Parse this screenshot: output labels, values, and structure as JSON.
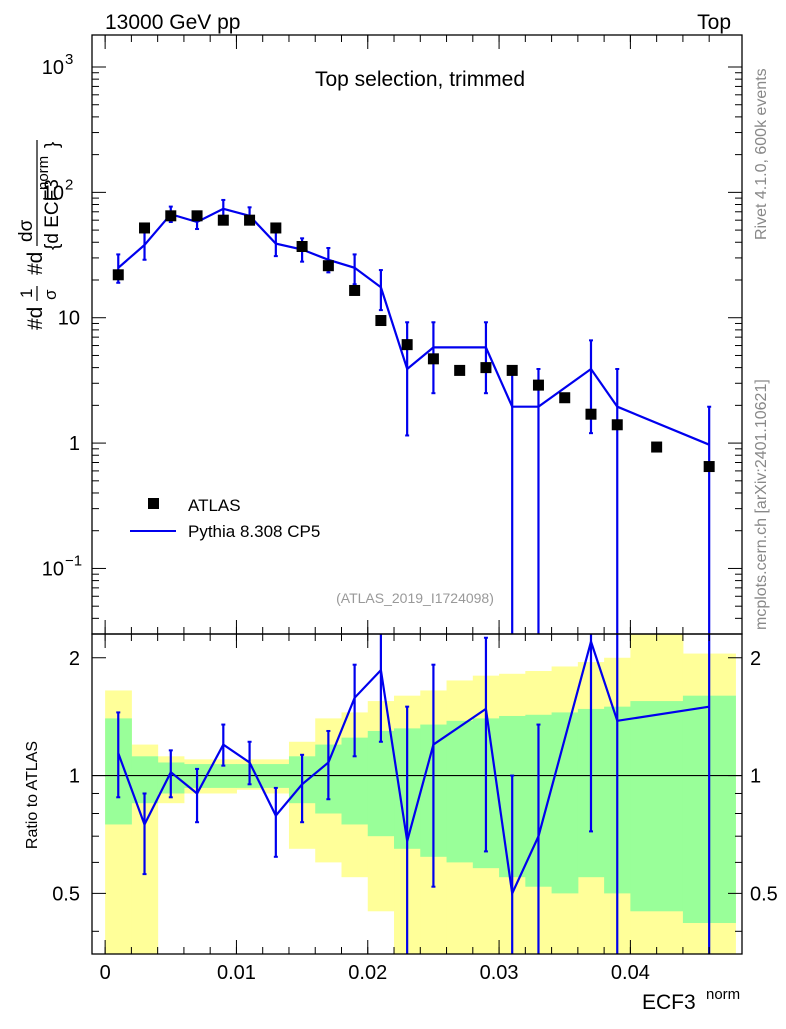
{
  "header": {
    "left": "13000 GeV pp",
    "right": "Top"
  },
  "side_labels": {
    "rivet": "Rivet 4.1.0,  600k events",
    "mcplots": "mcplots.cern.ch [arXiv:2401.10621]"
  },
  "legend": {
    "data_label": "ATLAS",
    "mc_label": "Pythia 8.308 CP5"
  },
  "analysis_id": "(ATLAS_2019_I1724098)",
  "colors": {
    "mc": "#0000ee",
    "data": "#000000",
    "band_inner": "#99ff99",
    "band_outer": "#ffff99"
  },
  "chart_data": [
    {
      "type": "scatter",
      "title": "Top selection, trimmed",
      "ylabel": "#d1/σ #dσ/#d{d ECF3^norm}",
      "yscale": "log",
      "xlim": [
        -0.001,
        0.0485
      ],
      "ylim": [
        0.03,
        1800
      ],
      "y_tick_labels": [
        {
          "value": 0.1,
          "base": "10",
          "exp": "−1"
        },
        {
          "value": 1,
          "base": "1",
          "exp": ""
        },
        {
          "value": 10,
          "base": "10",
          "exp": ""
        },
        {
          "value": 100,
          "base": "10",
          "exp": "2"
        },
        {
          "value": 1000,
          "base": "10",
          "exp": "3"
        }
      ],
      "series": [
        {
          "name": "ATLAS",
          "kind": "points",
          "x": [
            0.001,
            0.003,
            0.005,
            0.007,
            0.009,
            0.011,
            0.013,
            0.015,
            0.017,
            0.019,
            0.021,
            0.023,
            0.025,
            0.027,
            0.029,
            0.031,
            0.033,
            0.035,
            0.037,
            0.039,
            0.042,
            0.046
          ],
          "y": [
            22,
            52,
            65,
            65,
            60,
            60,
            52,
            37,
            26,
            16.5,
            9.5,
            6.1,
            4.7,
            3.8,
            4.0,
            3.8,
            2.9,
            2.3,
            1.7,
            1.4,
            0.93,
            0.65
          ]
        },
        {
          "name": "Pythia 8.308 CP5",
          "kind": "step-line",
          "x": [
            0.001,
            0.003,
            0.005,
            0.007,
            0.009,
            0.011,
            0.013,
            0.015,
            0.017,
            0.019,
            0.021,
            0.023,
            0.025,
            0.029,
            0.031,
            0.033,
            0.037,
            0.039,
            0.046
          ],
          "y": [
            25,
            38,
            67,
            58,
            74,
            65,
            39,
            35,
            29,
            25,
            17.5,
            3.9,
            5.8,
            5.8,
            1.95,
            1.95,
            3.9,
            1.95,
            0.97
          ],
          "err_lo": [
            19,
            29,
            58,
            51,
            64,
            56,
            31,
            28,
            23,
            18.5,
            11.5,
            1.15,
            2.5,
            2.5,
            0.01,
            0.01,
            1.2,
            0.01,
            0.01
          ],
          "err_hi": [
            32,
            48,
            77,
            67,
            87,
            76,
            48,
            43,
            36,
            32,
            24,
            9.2,
            9.2,
            9.2,
            3.9,
            3.9,
            6.6,
            3.9,
            1.95
          ]
        }
      ]
    },
    {
      "type": "line",
      "ylabel": "Ratio to ATLAS",
      "xlabel": "ECF3",
      "xlabel_sup": "norm",
      "xlim": [
        -0.001,
        0.0485
      ],
      "ylim": [
        0.35,
        2.3
      ],
      "x_ticks": [
        0,
        0.01,
        0.02,
        0.03,
        0.04
      ],
      "x_tick_labels": [
        "0",
        "0.01",
        "0.02",
        "0.03",
        "0.04"
      ],
      "y_ticks": [
        0.5,
        1,
        2
      ],
      "y_tick_labels": [
        "0.5",
        "1",
        "2"
      ],
      "reference_line": 1,
      "band_edges": [
        0,
        0.002,
        0.004,
        0.006,
        0.008,
        0.01,
        0.012,
        0.014,
        0.016,
        0.018,
        0.02,
        0.022,
        0.024,
        0.026,
        0.028,
        0.03,
        0.032,
        0.034,
        0.036,
        0.038,
        0.04,
        0.044,
        0.048
      ],
      "outer_band_lo": [
        0.35,
        0.35,
        0.85,
        0.9,
        0.9,
        0.92,
        0.9,
        0.65,
        0.6,
        0.55,
        0.45,
        0.35,
        0.35,
        0.35,
        0.35,
        0.35,
        0.35,
        0.35,
        0.35,
        0.35,
        0.35,
        0.35
      ],
      "outer_band_hi": [
        1.65,
        1.2,
        1.12,
        1.1,
        1.1,
        1.1,
        1.1,
        1.22,
        1.4,
        1.45,
        1.55,
        1.6,
        1.65,
        1.75,
        1.8,
        1.82,
        1.85,
        1.9,
        1.95,
        2.0,
        2.3,
        2.05
      ],
      "inner_band_lo": [
        0.75,
        0.85,
        0.9,
        0.93,
        0.93,
        0.93,
        0.93,
        0.85,
        0.8,
        0.75,
        0.7,
        0.65,
        0.62,
        0.6,
        0.58,
        0.55,
        0.52,
        0.5,
        0.55,
        0.5,
        0.45,
        0.42
      ],
      "inner_band_hi": [
        1.4,
        1.12,
        1.08,
        1.07,
        1.07,
        1.07,
        1.07,
        1.12,
        1.2,
        1.25,
        1.3,
        1.32,
        1.35,
        1.38,
        1.4,
        1.42,
        1.43,
        1.45,
        1.48,
        1.5,
        1.55,
        1.6
      ],
      "series": [
        {
          "name": "Pythia 8.308 CP5 / ATLAS",
          "x": [
            0.001,
            0.003,
            0.005,
            0.007,
            0.009,
            0.011,
            0.013,
            0.015,
            0.017,
            0.019,
            0.021,
            0.023,
            0.025,
            0.029,
            0.031,
            0.033,
            0.037,
            0.039,
            0.046
          ],
          "y": [
            1.14,
            0.75,
            1.02,
            0.9,
            1.2,
            1.08,
            0.79,
            0.95,
            1.08,
            1.58,
            1.86,
            0.68,
            1.2,
            1.48,
            0.5,
            0.7,
            2.2,
            1.38,
            1.5
          ],
          "err_lo": [
            0.88,
            0.56,
            0.88,
            0.76,
            1.06,
            0.95,
            0.62,
            0.76,
            0.87,
            1.12,
            1.22,
            0.2,
            0.52,
            0.64,
            0.01,
            0.01,
            0.72,
            0.01,
            0.01
          ],
          "err_hi": [
            1.45,
            0.9,
            1.16,
            1.04,
            1.35,
            1.22,
            0.93,
            1.13,
            1.3,
            1.92,
            2.4,
            1.5,
            1.92,
            2.25,
            1.0,
            1.35,
            2.3,
            2.3,
            2.3
          ]
        }
      ]
    }
  ]
}
